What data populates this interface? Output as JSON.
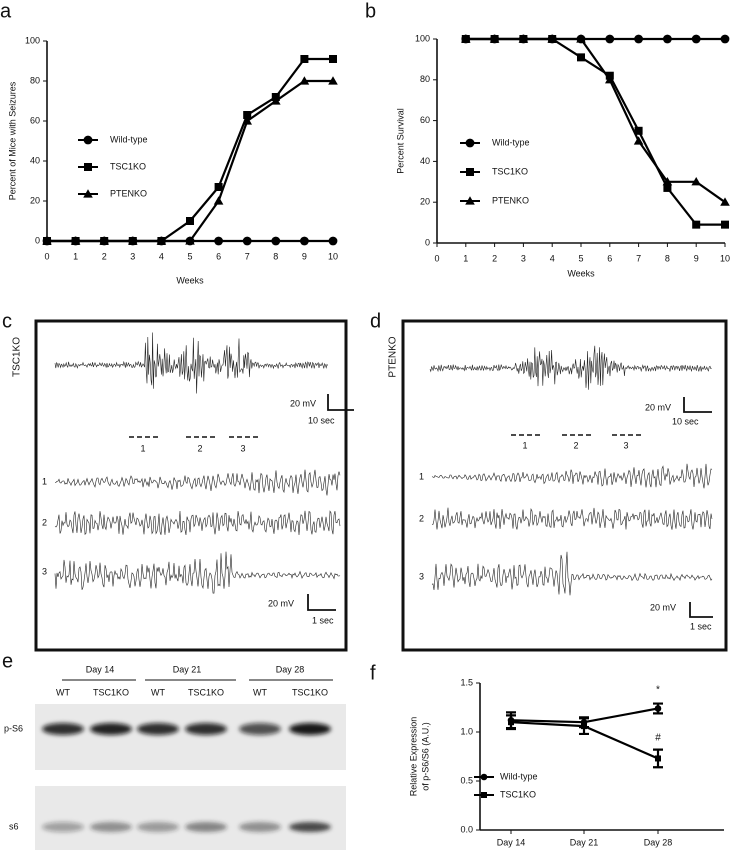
{
  "chart_data": [
    {
      "type": "line",
      "label": "a",
      "xlabel": "Weeks",
      "ylabel": "Percent of Mice with Seizures",
      "x": [
        0,
        1,
        2,
        3,
        4,
        5,
        6,
        7,
        8,
        9,
        10
      ],
      "xlim": [
        0,
        10
      ],
      "xticks": [
        0,
        1,
        2,
        3,
        4,
        5,
        6,
        7,
        8,
        9,
        10
      ],
      "ylim": [
        0,
        100
      ],
      "yticks": [
        0,
        20,
        40,
        60,
        80,
        100
      ],
      "series": [
        {
          "name": "Wild-type",
          "color": "#000000",
          "marker": "circle",
          "values": [
            0,
            0,
            0,
            0,
            0,
            0,
            0,
            0,
            0,
            0,
            0
          ]
        },
        {
          "name": "TSC1KO",
          "color": "#000000",
          "marker": "square",
          "values": [
            0,
            0,
            0,
            0,
            0,
            10,
            27,
            63,
            72,
            91,
            91
          ]
        },
        {
          "name": "PTENKO",
          "color": "#000000",
          "marker": "triangle",
          "values": [
            0,
            0,
            0,
            0,
            0,
            0,
            20,
            60,
            70,
            80,
            80
          ]
        }
      ]
    },
    {
      "type": "line",
      "label": "b",
      "xlabel": "Weeks",
      "ylabel": "Percent Survival",
      "x": [
        1,
        2,
        3,
        4,
        5,
        6,
        7,
        8,
        9,
        10
      ],
      "xlim": [
        0,
        10
      ],
      "xticks": [
        0,
        1,
        2,
        3,
        4,
        5,
        6,
        7,
        8,
        9,
        10
      ],
      "ylim": [
        0,
        100
      ],
      "yticks": [
        0,
        20,
        40,
        60,
        80,
        100
      ],
      "series": [
        {
          "name": "Wild-type",
          "color": "#000000",
          "marker": "circle",
          "values": [
            100,
            100,
            100,
            100,
            100,
            100,
            100,
            100,
            100,
            100
          ]
        },
        {
          "name": "TSC1KO",
          "color": "#000000",
          "marker": "square",
          "values": [
            100,
            100,
            100,
            100,
            91,
            82,
            55,
            27,
            9,
            9
          ]
        },
        {
          "name": "PTENKO",
          "color": "#000000",
          "marker": "triangle",
          "values": [
            100,
            100,
            100,
            100,
            100,
            80,
            50,
            30,
            30,
            20
          ]
        }
      ]
    },
    {
      "type": "line",
      "label": "f",
      "ylabel": [
        "Relative Expression",
        "of p-S6/S6 (A.U.)"
      ],
      "categories": [
        "Day 14",
        "Day 21",
        "Day 28"
      ],
      "ylim": [
        0,
        1.5
      ],
      "yticks": [
        {
          "value": 0,
          "label": "0.0"
        },
        0.5,
        {
          "value": 1,
          "label": "1.0"
        },
        1.5
      ],
      "annotations": [
        "*",
        "#"
      ],
      "series": [
        {
          "name": "Wild-type",
          "color": "#000000",
          "marker": "circle",
          "values": [
            1.12,
            1.1,
            1.24
          ],
          "errors": [
            0.08,
            0.05,
            0.05
          ]
        },
        {
          "name": "TSC1KO",
          "color": "#000000",
          "marker": "square",
          "values": [
            1.1,
            1.06,
            0.73
          ],
          "errors": [
            0.07,
            0.08,
            0.09
          ]
        }
      ]
    }
  ],
  "panels": {
    "c": {
      "label": "c",
      "genotype": "TSC1KO",
      "scale_top": {
        "amplitude": "20 mV",
        "time": "10 sec"
      },
      "segments": [
        "1",
        "2",
        "3"
      ],
      "trace_labels": [
        "1",
        "2",
        "3"
      ],
      "scale_bottom": {
        "amplitude": "20 mV",
        "time": "1 sec"
      }
    },
    "d": {
      "label": "d",
      "genotype": "PTENKO",
      "scale_top": {
        "amplitude": "20 mV",
        "time": "10 sec"
      },
      "segments": [
        "1",
        "2",
        "3"
      ],
      "trace_labels": [
        "1",
        "2",
        "3"
      ],
      "scale_bottom": {
        "amplitude": "20 mV",
        "time": "1 sec"
      }
    },
    "e": {
      "label": "e",
      "days": [
        "Day 14",
        "Day 21",
        "Day 28"
      ],
      "lanes": [
        "WT",
        "TSC1KO",
        "WT",
        "TSC1KO",
        "WT",
        "TSC1KO"
      ],
      "blots": [
        "p-S6",
        "s6"
      ]
    }
  }
}
